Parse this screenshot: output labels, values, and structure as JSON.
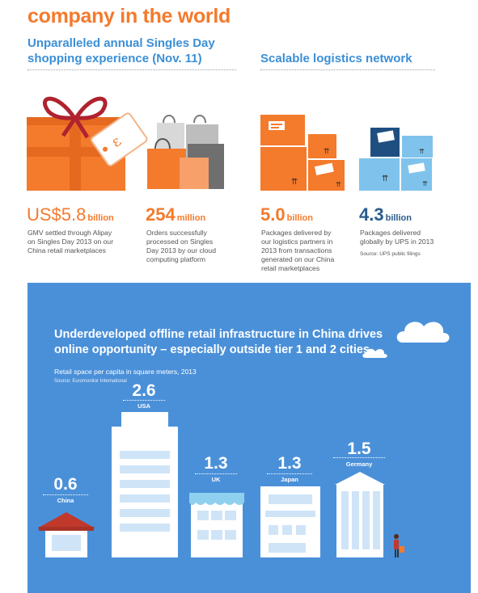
{
  "title": "company in the world",
  "shopping": {
    "heading_line1": "Unparalleled annual Singles Day",
    "heading_line2": "shopping experience (Nov. 11)",
    "gmv": {
      "value": "US$5.8",
      "unit": "billion",
      "desc": [
        "GMV settled through Alipay",
        "on Singles Day 2013 on our",
        "China retail marketplaces"
      ]
    },
    "orders": {
      "value": "254",
      "unit": "million",
      "desc": [
        "Orders successfully",
        "processed on Singles",
        "Day 2013 by our cloud",
        "computing platform"
      ]
    }
  },
  "logistics": {
    "heading": "Scalable logistics network",
    "partners": {
      "value": "5.0",
      "unit": "billion",
      "desc": [
        "Packages delivered by",
        "our logistics partners in",
        "2013 from transactions",
        "generated on our China",
        "retail marketplaces"
      ]
    },
    "ups": {
      "value": "4.3",
      "unit": "billion",
      "desc": [
        "Packages delivered",
        "globally by UPS in 2013"
      ],
      "source": "Source: UPS public filings"
    }
  },
  "retail": {
    "heading_line1": "Underdeveloped offline retail infrastructure in China drives",
    "heading_line2": "online opportunity – especially outside tier 1 and 2 cities",
    "subtitle": "Retail space per capita in square meters, 2013",
    "source": "Source: Euromonitor International",
    "countries": [
      {
        "name": "China",
        "value": "0.6"
      },
      {
        "name": "USA",
        "value": "2.6"
      },
      {
        "name": "UK",
        "value": "1.3"
      },
      {
        "name": "Japan",
        "value": "1.3"
      },
      {
        "name": "Germany",
        "value": "1.5"
      }
    ]
  },
  "colors": {
    "orange": "#f47a2c",
    "blue": "#3b8fd6",
    "navy": "#2a5b8c",
    "panel": "#4a90d9"
  }
}
